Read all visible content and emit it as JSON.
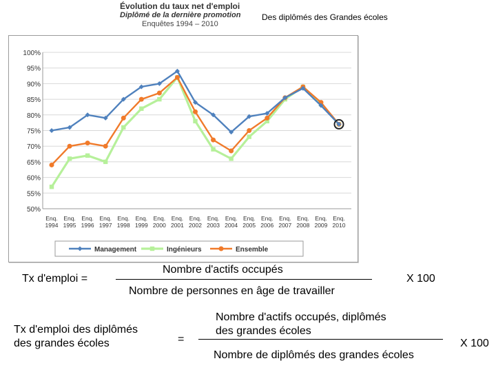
{
  "header": {
    "title_line1": "Évolution du taux net d'emploi",
    "title_line2": "Diplômé de la dernière promotion",
    "title_line3": "Enquêtes 1994 – 2010",
    "right_caption": "Des diplômés des Grandes écoles"
  },
  "chart_data": {
    "type": "line",
    "x": [
      "Enq. 1994",
      "Enq. 1995",
      "Enq. 1996",
      "Enq. 1997",
      "Enq. 1998",
      "Enq. 1999",
      "Enq. 2000",
      "Enq. 2001",
      "Enq. 2002",
      "Enq. 2003",
      "Enq. 2004",
      "Enq. 2005",
      "Enq. 2006",
      "Enq. 2007",
      "Enq. 2008",
      "Enq. 2009",
      "Enq. 2010"
    ],
    "x_ticks": [
      [
        "Enq.",
        "1994"
      ],
      [
        "Enq.",
        "1995"
      ],
      [
        "Enq.",
        "1996"
      ],
      [
        "Enq.",
        "1997"
      ],
      [
        "Enq.",
        "1998"
      ],
      [
        "Enq.",
        "1999"
      ],
      [
        "Enq.",
        "2000"
      ],
      [
        "Enq.",
        "2001"
      ],
      [
        "Enq.",
        "2002"
      ],
      [
        "Enq.",
        "2003"
      ],
      [
        "Enq.",
        "2004"
      ],
      [
        "Enq.",
        "2005"
      ],
      [
        "Enq.",
        "2006"
      ],
      [
        "Enq.",
        "2007"
      ],
      [
        "Enq.",
        "2008"
      ],
      [
        "Enq.",
        "2009"
      ],
      [
        "Enq.",
        "2010"
      ]
    ],
    "ylim": [
      50,
      100
    ],
    "y_ticks": [
      50,
      55,
      60,
      65,
      70,
      75,
      80,
      85,
      90,
      95,
      100
    ],
    "y_tick_suffix": "%",
    "grid": true,
    "legend_position": "bottom",
    "series": [
      {
        "name": "Management",
        "color": "#4f81bd",
        "marker": "diamond",
        "values": [
          75,
          76,
          80,
          79,
          85,
          89,
          90,
          94,
          84,
          80,
          74.5,
          79.5,
          80.5,
          85.5,
          88.5,
          83,
          77
        ]
      },
      {
        "name": "Ingénieurs",
        "color": "#b6f09a",
        "marker": "square",
        "values": [
          57,
          66,
          67,
          65,
          76,
          82,
          85,
          92,
          78,
          69,
          66,
          73,
          78,
          85,
          89,
          83.5,
          77
        ]
      },
      {
        "name": "Ensemble",
        "color": "#f07a2a",
        "marker": "circle",
        "values": [
          64,
          70,
          71,
          70,
          79,
          85,
          87,
          92,
          81,
          72,
          68.5,
          75,
          79,
          85.5,
          89,
          84,
          77
        ]
      }
    ],
    "highlight": {
      "x_index": 16,
      "value": 77
    }
  },
  "formula1": {
    "lhs": "Tx d'emploi =",
    "numerator": "Nombre d'actifs occupés",
    "denominator": "Nombre de personnes en âge de travailler",
    "factor": "X 100"
  },
  "formula2": {
    "lhs_line1": "Tx d'emploi des diplômés",
    "lhs_line2": "des grandes écoles",
    "equals": "=",
    "numerator_line1": "Nombre d'actifs occupés, diplômés",
    "numerator_line2": "des grandes écoles",
    "denominator": "Nombre de diplômés des grandes écoles",
    "factor": "X 100"
  }
}
